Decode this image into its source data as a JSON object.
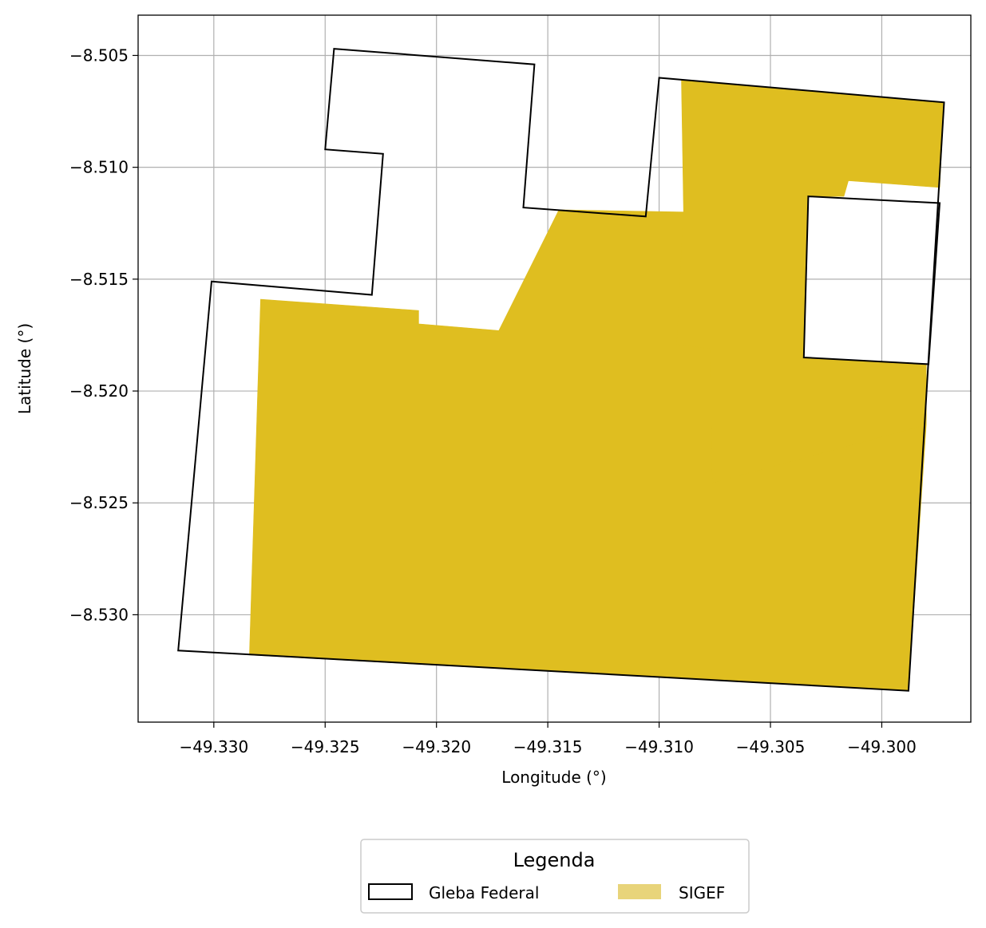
{
  "chart_data": {
    "type": "map",
    "xlabel": "Longitude (°)",
    "ylabel": "Latitude (°)",
    "xlim": [
      -49.3334,
      -49.296
    ],
    "ylim": [
      -8.5348,
      -8.5032
    ],
    "grid": true,
    "x_ticks": [
      -49.33,
      -49.325,
      -49.32,
      -49.315,
      -49.31,
      -49.305,
      -49.3
    ],
    "x_tick_labels": [
      "−49.330",
      "−49.325",
      "−49.320",
      "−49.315",
      "−49.310",
      "−49.305",
      "−49.300"
    ],
    "y_ticks": [
      -8.505,
      -8.51,
      -8.515,
      -8.52,
      -8.525,
      -8.53
    ],
    "y_tick_labels": [
      "−8.505",
      "−8.510",
      "−8.515",
      "−8.520",
      "−8.525",
      "−8.530"
    ],
    "legend": {
      "title": "Legenda",
      "placement": "bottom-center",
      "entries": [
        {
          "label": "Gleba Federal",
          "style": "outline",
          "edge": "#000000",
          "fill": "none"
        },
        {
          "label": "SIGEF",
          "style": "fill",
          "fill": "#e8d47a"
        }
      ]
    },
    "layers": [
      {
        "name": "SIGEF",
        "color": "#dfbe20",
        "polygons": [
          [
            [
              -49.3279,
              -8.5159
            ],
            [
              -49.3208,
              -8.5164
            ],
            [
              -49.3208,
              -8.517
            ],
            [
              -49.3172,
              -8.5173
            ],
            [
              -49.3145,
              -8.5119
            ],
            [
              -49.3089,
              -8.512
            ],
            [
              -49.3092,
              -8.5179
            ],
            [
              -49.3077,
              -8.5181
            ],
            [
              -49.3076,
              -8.5241
            ],
            [
              -49.298,
              -8.5215
            ],
            [
              -49.2988,
              -8.5334
            ],
            [
              -49.3284,
              -8.5318
            ]
          ],
          [
            [
              -49.309,
              -8.5061
            ],
            [
              -49.2972,
              -8.5071
            ],
            [
              -49.2974,
              -8.5109
            ],
            [
              -49.3015,
              -8.5106
            ],
            [
              -49.3017,
              -8.5113
            ],
            [
              -49.3033,
              -8.5113
            ],
            [
              -49.3035,
              -8.5185
            ],
            [
              -49.298,
              -8.5188
            ],
            [
              -49.298,
              -8.5215
            ],
            [
              -49.3076,
              -8.5241
            ],
            [
              -49.3077,
              -8.5181
            ],
            [
              -49.3092,
              -8.5179
            ],
            [
              -49.3089,
              -8.512
            ]
          ]
        ]
      },
      {
        "name": "Gleba Federal",
        "edge": "#000000",
        "polygons": [
          [
            [
              -49.3246,
              -8.5047
            ],
            [
              -49.3156,
              -8.5054
            ],
            [
              -49.3161,
              -8.5118
            ],
            [
              -49.3106,
              -8.5122
            ],
            [
              -49.31,
              -8.506
            ],
            [
              -49.2972,
              -8.5071
            ],
            [
              -49.2988,
              -8.5334
            ],
            [
              -49.3316,
              -8.5316
            ],
            [
              -49.3301,
              -8.5151
            ],
            [
              -49.3229,
              -8.5157
            ],
            [
              -49.3224,
              -8.5094
            ],
            [
              -49.325,
              -8.5092
            ]
          ],
          [
            [
              -49.3033,
              -8.5113
            ],
            [
              -49.2974,
              -8.5116
            ],
            [
              -49.2979,
              -8.5188
            ],
            [
              -49.3035,
              -8.5185
            ]
          ]
        ]
      }
    ]
  }
}
